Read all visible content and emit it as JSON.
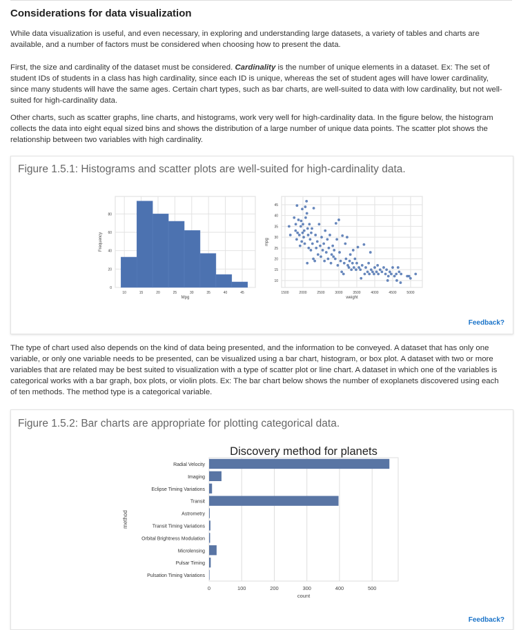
{
  "heading": "Considerations for data visualization",
  "paragraphs": {
    "p1": "While data visualization is useful, and even necessary, in exploring and understanding large datasets, a variety of tables and charts are available, and a number of factors must be considered when choosing how to present the data.",
    "p2_a": "First, the size and cardinality of the dataset must be considered. ",
    "p2_term": "Cardinality",
    "p2_b": " is the number of unique elements in a dataset. Ex: The set of student IDs of students in a class has high cardinality, since each ID is unique, whereas the set of student ages will have lower cardinality, since many students will have the same ages. Certain chart types, such as bar charts, are well-suited to data with low cardinality, but not well-suited for high-cardinality data.",
    "p3": "Other charts, such as scatter graphs, line charts, and histograms, work very well for high-cardinality data. In the figure below, the histogram collects the data into eight equal sized bins and shows the distribution of a large number of unique data points. The scatter plot shows the relationship between two variables with high cardinality.",
    "p4": "The type of chart used also depends on the kind of data being presented, and the information to be conveyed. A dataset that has only one variable, or only one variable needs to be presented, can be visualized using a bar chart, histogram, or box plot. A dataset with two or more variables that are related may be best suited to visualization with a type of scatter plot or line chart. A dataset in which one of the variables is categorical works with a bar graph, box plots, or violin plots. Ex: The bar chart below shows the number of exoplanets discovered using each of ten methods. The method type is a categorical variable."
  },
  "figure1": {
    "title": "Figure 1.5.1: Histograms and scatter plots are well-suited for high-cardinality data.",
    "feedback": "Feedback?"
  },
  "figure2": {
    "title": "Figure 1.5.2: Bar charts are appropriate for plotting categorical data.",
    "feedback": "Feedback?"
  },
  "colors": {
    "bar": "#4c72b0",
    "bar2": "#5975a4",
    "link": "#1a73c9"
  },
  "chart_data": [
    {
      "type": "bar",
      "subtype": "histogram",
      "xlabel": "Mpg",
      "ylabel": "Frequency",
      "bin_edges": [
        9,
        13.7,
        18.4,
        23.1,
        27.8,
        32.5,
        37.2,
        41.9,
        46.6
      ],
      "values": [
        33,
        94,
        80,
        72,
        62,
        37,
        14,
        6
      ],
      "xticks": [
        10,
        15,
        20,
        25,
        30,
        35,
        40,
        45
      ],
      "yticks": [
        0,
        20,
        40,
        60,
        80
      ],
      "xlim": [
        7.3,
        48.9
      ],
      "ylim": [
        0,
        99
      ],
      "grid": true
    },
    {
      "type": "scatter",
      "xlabel": "weight",
      "ylabel": "mpg",
      "xticks": [
        1500,
        2000,
        2500,
        3000,
        3500,
        4000,
        4500,
        5000
      ],
      "yticks": [
        10,
        15,
        20,
        25,
        30,
        35,
        40,
        45
      ],
      "xlim": [
        1404,
        5327
      ],
      "ylim": [
        6.8,
        48.8
      ],
      "grid": true,
      "points": [
        [
          1613,
          35
        ],
        [
          1649,
          31
        ],
        [
          1755,
          39
        ],
        [
          1795,
          33
        ],
        [
          1800,
          36
        ],
        [
          1834,
          44.6
        ],
        [
          1825,
          29
        ],
        [
          1850,
          32
        ],
        [
          1875,
          38
        ],
        [
          1900,
          31
        ],
        [
          1920,
          26
        ],
        [
          1940,
          35
        ],
        [
          1950,
          37.5
        ],
        [
          1965,
          28
        ],
        [
          1980,
          43
        ],
        [
          1990,
          32
        ],
        [
          2000,
          36
        ],
        [
          2020,
          30
        ],
        [
          2035,
          33
        ],
        [
          2050,
          27
        ],
        [
          2065,
          44
        ],
        [
          2075,
          39
        ],
        [
          2100,
          46.6
        ],
        [
          2110,
          41
        ],
        [
          2120,
          18
        ],
        [
          2130,
          34
        ],
        [
          2145,
          31
        ],
        [
          2160,
          25
        ],
        [
          2180,
          36
        ],
        [
          2200,
          29
        ],
        [
          2220,
          24
        ],
        [
          2230,
          32
        ],
        [
          2250,
          34
        ],
        [
          2265,
          27
        ],
        [
          2290,
          20
        ],
        [
          2300,
          43.4
        ],
        [
          2330,
          19
        ],
        [
          2350,
          31
        ],
        [
          2370,
          25
        ],
        [
          2400,
          28
        ],
        [
          2420,
          22
        ],
        [
          2450,
          36
        ],
        [
          2480,
          26
        ],
        [
          2500,
          21
        ],
        [
          2520,
          30
        ],
        [
          2550,
          24
        ],
        [
          2580,
          27
        ],
        [
          2600,
          19
        ],
        [
          2620,
          33
        ],
        [
          2650,
          23
        ],
        [
          2680,
          29
        ],
        [
          2700,
          20
        ],
        [
          2720,
          25
        ],
        [
          2750,
          31
        ],
        [
          2780,
          18
        ],
        [
          2800,
          22
        ],
        [
          2830,
          26
        ],
        [
          2850,
          21
        ],
        [
          2870,
          24
        ],
        [
          2900,
          20
        ],
        [
          2920,
          36.4
        ],
        [
          2945,
          29
        ],
        [
          2970,
          17
        ],
        [
          3000,
          38
        ],
        [
          3020,
          23
        ],
        [
          3050,
          19
        ],
        [
          3080,
          14
        ],
        [
          3100,
          30.7
        ],
        [
          3130,
          13
        ],
        [
          3150,
          18
        ],
        [
          3180,
          27
        ],
        [
          3200,
          20
        ],
        [
          3230,
          30
        ],
        [
          3250,
          17
        ],
        [
          3280,
          16
        ],
        [
          3300,
          19
        ],
        [
          3320,
          22
        ],
        [
          3350,
          15
        ],
        [
          3380,
          18
        ],
        [
          3400,
          24
        ],
        [
          3420,
          16
        ],
        [
          3450,
          20
        ],
        [
          3480,
          15
        ],
        [
          3500,
          18
        ],
        [
          3530,
          25.4
        ],
        [
          3560,
          16
        ],
        [
          3600,
          15
        ],
        [
          3620,
          11
        ],
        [
          3650,
          17
        ],
        [
          3700,
          26.6
        ],
        [
          3720,
          13
        ],
        [
          3750,
          16
        ],
        [
          3800,
          14
        ],
        [
          3830,
          18
        ],
        [
          3850,
          13
        ],
        [
          3880,
          23
        ],
        [
          3900,
          15
        ],
        [
          3940,
          14
        ],
        [
          3980,
          13
        ],
        [
          4000,
          16
        ],
        [
          4050,
          14
        ],
        [
          4080,
          17
        ],
        [
          4100,
          13
        ],
        [
          4150,
          15
        ],
        [
          4200,
          14
        ],
        [
          4250,
          16
        ],
        [
          4300,
          13
        ],
        [
          4330,
          15
        ],
        [
          4360,
          10
        ],
        [
          4380,
          12
        ],
        [
          4420,
          14
        ],
        [
          4460,
          13
        ],
        [
          4500,
          16
        ],
        [
          4550,
          12
        ],
        [
          4600,
          13
        ],
        [
          4615,
          10
        ],
        [
          4650,
          16
        ],
        [
          4680,
          14
        ],
        [
          4720,
          9
        ],
        [
          4735,
          13
        ],
        [
          4906,
          12
        ],
        [
          4955,
          12
        ],
        [
          4997,
          11
        ],
        [
          5140,
          13
        ]
      ]
    },
    {
      "type": "bar",
      "orientation": "horizontal",
      "title": "Discovery method for planets",
      "xlabel": "count",
      "ylabel": "method",
      "xticks": [
        0,
        100,
        200,
        300,
        400,
        500
      ],
      "xlim": [
        0,
        580
      ],
      "grid": true,
      "categories": [
        "Radial Velocity",
        "Imaging",
        "Eclipse Timing Variations",
        "Transit",
        "Astrometry",
        "Transit Timing Variations",
        "Orbital Brightness Modulation",
        "Microlensing",
        "Pulsar Timing",
        "Pulsation Timing Variations"
      ],
      "values": [
        553,
        38,
        9,
        397,
        2,
        4,
        3,
        23,
        5,
        1
      ]
    }
  ]
}
